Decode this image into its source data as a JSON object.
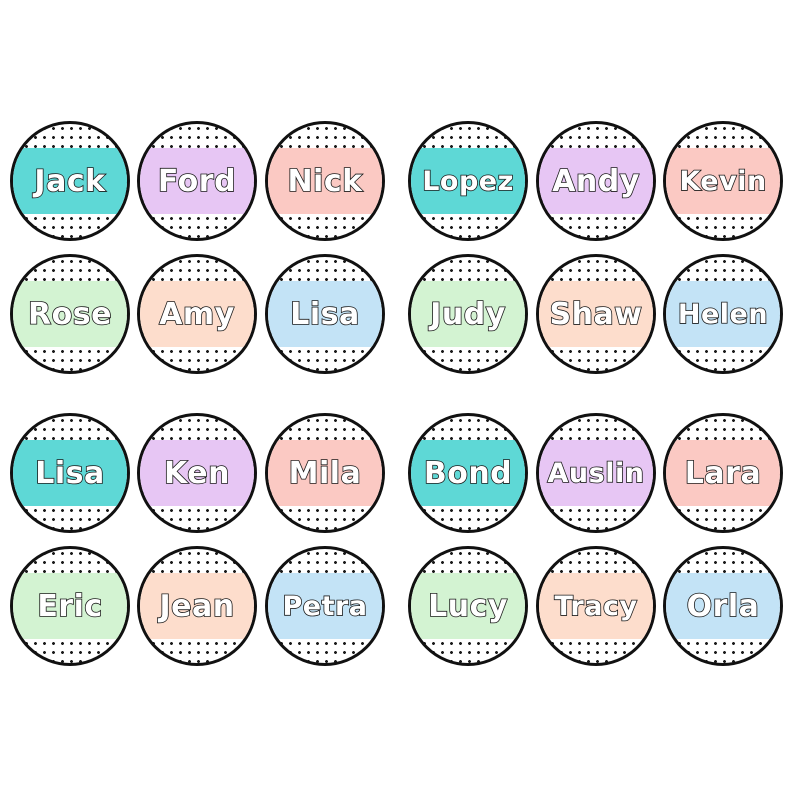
{
  "colors": {
    "teal": "#5ed8d6",
    "lavender": "#e7c6f4",
    "pink": "#fbc9c3",
    "mint": "#d3f3d2",
    "peach": "#fdddcc",
    "blue": "#c3e3f6",
    "outline": "#1a1a1a",
    "dots": "#1a1a1a"
  },
  "stickers": [
    {
      "name": "Jack",
      "color": "teal"
    },
    {
      "name": "Ford",
      "color": "lavender"
    },
    {
      "name": "Nick",
      "color": "pink"
    },
    {
      "name": "Lopez",
      "color": "teal"
    },
    {
      "name": "Andy",
      "color": "lavender"
    },
    {
      "name": "Kevin",
      "color": "pink"
    },
    {
      "name": "Rose",
      "color": "mint"
    },
    {
      "name": "Amy",
      "color": "peach"
    },
    {
      "name": "Lisa",
      "color": "blue"
    },
    {
      "name": "Judy",
      "color": "mint"
    },
    {
      "name": "Shaw",
      "color": "peach"
    },
    {
      "name": "Helen",
      "color": "blue"
    },
    {
      "name": "Lisa",
      "color": "teal"
    },
    {
      "name": "Ken",
      "color": "lavender"
    },
    {
      "name": "Mila",
      "color": "pink"
    },
    {
      "name": "Bond",
      "color": "teal"
    },
    {
      "name": "Auslin",
      "color": "lavender"
    },
    {
      "name": "Lara",
      "color": "pink"
    },
    {
      "name": "Eric",
      "color": "mint"
    },
    {
      "name": "Jean",
      "color": "peach"
    },
    {
      "name": "Petra",
      "color": "blue"
    },
    {
      "name": "Lucy",
      "color": "mint"
    },
    {
      "name": "Tracy",
      "color": "peach"
    },
    {
      "name": "Orla",
      "color": "blue"
    }
  ]
}
